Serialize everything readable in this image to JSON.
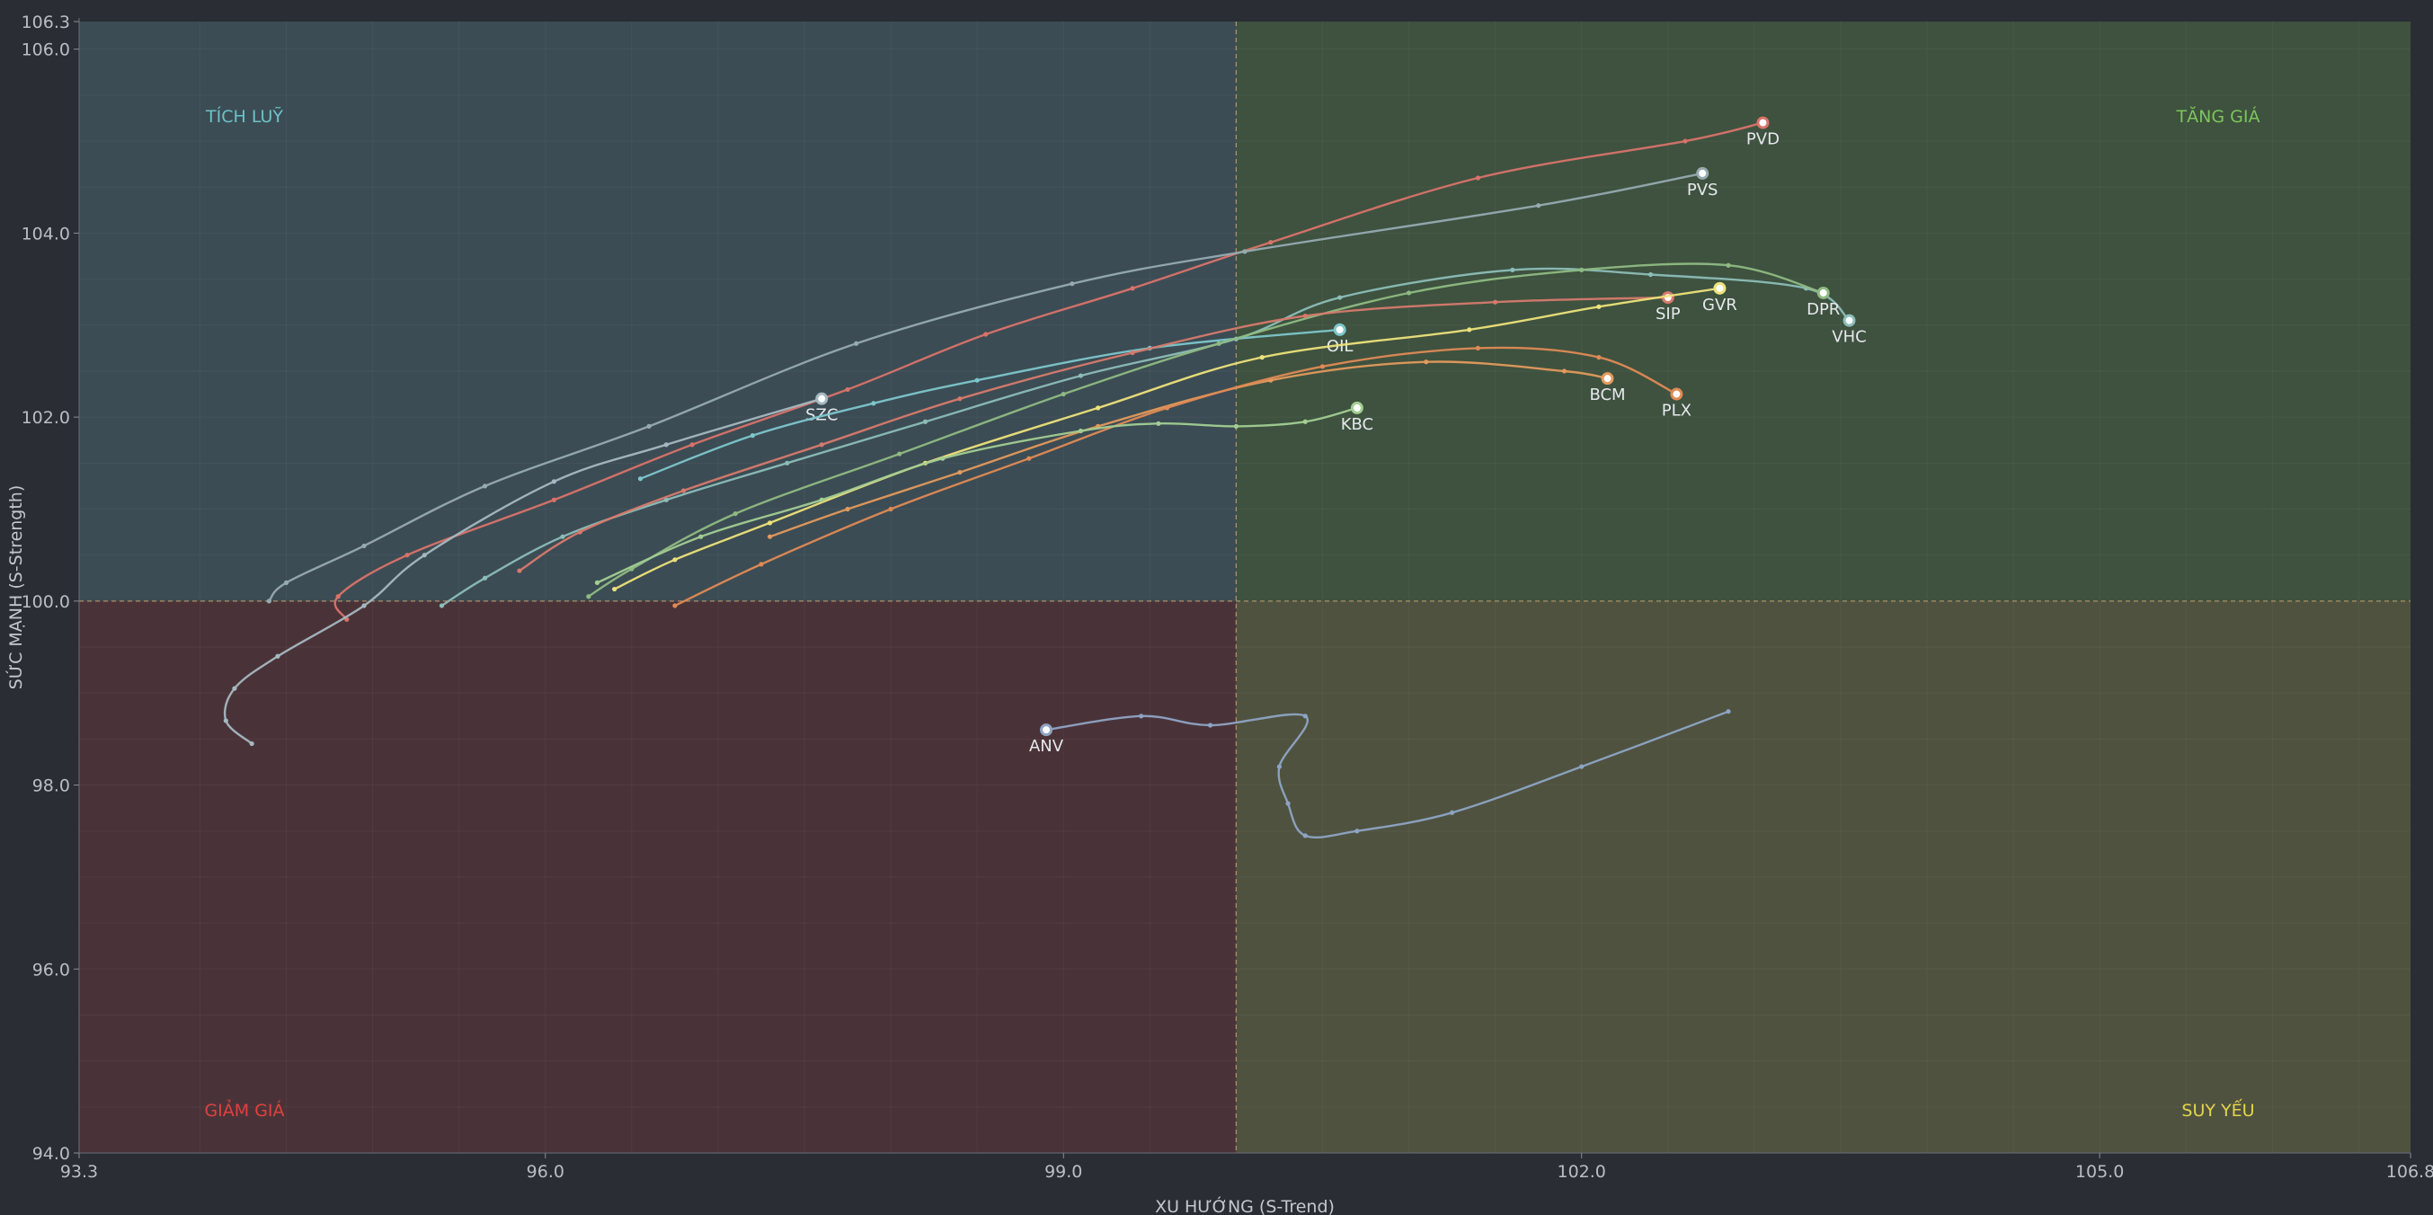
{
  "chart_data": {
    "type": "line",
    "xlabel": "XU HƯỚNG (S-Trend)",
    "ylabel": "SỨC MẠNH (S-Strength)",
    "xlim": [
      93.3,
      106.8
    ],
    "ylim": [
      94.0,
      106.3
    ],
    "x_ticks": [
      "93.3",
      "96.0",
      "99.0",
      "102.0",
      "105.0",
      "106.8"
    ],
    "x_tick_values": [
      93.3,
      96.0,
      99.0,
      102.0,
      105.0,
      106.8
    ],
    "y_ticks": [
      "94.0",
      "96.0",
      "98.0",
      "100.0",
      "102.0",
      "104.0",
      "106.0",
      "106.3"
    ],
    "y_tick_values": [
      94.0,
      96.0,
      98.0,
      100.0,
      102.0,
      104.0,
      106.0,
      106.3
    ],
    "center": [
      100.0,
      100.0
    ],
    "grid": true,
    "quadrants": [
      {
        "name": "TÍCH LUỸ",
        "position": "top-left",
        "color": "#6cc3c8"
      },
      {
        "name": "TĂNG GIÁ",
        "position": "top-right",
        "color": "#7fc45c"
      },
      {
        "name": "GIẢM GIÁ",
        "position": "bottom-left",
        "color": "#e0413f"
      },
      {
        "name": "SUY YẾU",
        "position": "bottom-right",
        "color": "#e4d64a"
      }
    ],
    "series": [
      {
        "name": "PVD",
        "color": "#d9736a",
        "points": [
          [
            94.85,
            99.8
          ],
          [
            94.8,
            100.05
          ],
          [
            95.2,
            100.5
          ],
          [
            96.05,
            101.1
          ],
          [
            96.85,
            101.7
          ],
          [
            97.75,
            102.3
          ],
          [
            98.55,
            102.9
          ],
          [
            99.4,
            103.4
          ],
          [
            100.2,
            103.9
          ],
          [
            101.4,
            104.6
          ],
          [
            102.6,
            105.0
          ],
          [
            103.05,
            105.2
          ]
        ]
      },
      {
        "name": "PVS",
        "color": "#96aab1",
        "points": [
          [
            94.4,
            100.0
          ],
          [
            94.5,
            100.2
          ],
          [
            94.95,
            100.6
          ],
          [
            95.65,
            101.25
          ],
          [
            96.6,
            101.9
          ],
          [
            97.8,
            102.8
          ],
          [
            99.05,
            103.45
          ],
          [
            100.05,
            103.8
          ],
          [
            101.75,
            104.3
          ],
          [
            102.7,
            104.65
          ]
        ]
      },
      {
        "name": "SZC",
        "color": "#a5b8c1",
        "points": [
          [
            94.3,
            98.45
          ],
          [
            94.15,
            98.7
          ],
          [
            94.2,
            99.05
          ],
          [
            94.45,
            99.4
          ],
          [
            94.95,
            99.95
          ],
          [
            95.3,
            100.5
          ],
          [
            96.05,
            101.3
          ],
          [
            96.7,
            101.7
          ],
          [
            97.6,
            102.2
          ]
        ]
      },
      {
        "name": "OIL",
        "color": "#7dc6cc",
        "points": [
          [
            96.55,
            101.33
          ],
          [
            97.2,
            101.8
          ],
          [
            97.9,
            102.15
          ],
          [
            98.5,
            102.4
          ],
          [
            99.5,
            102.75
          ],
          [
            100.6,
            102.95
          ]
        ]
      },
      {
        "name": "VHC",
        "color": "#8cbdb8",
        "points": [
          [
            95.4,
            99.95
          ],
          [
            95.65,
            100.25
          ],
          [
            96.1,
            100.7
          ],
          [
            96.7,
            101.1
          ],
          [
            97.4,
            101.5
          ],
          [
            98.2,
            101.95
          ],
          [
            99.1,
            102.45
          ],
          [
            100.0,
            102.85
          ],
          [
            100.6,
            103.3
          ],
          [
            101.6,
            103.6
          ],
          [
            102.4,
            103.55
          ],
          [
            103.3,
            103.4
          ],
          [
            103.55,
            103.05
          ]
        ]
      },
      {
        "name": "DPR",
        "color": "#8fba82",
        "points": [
          [
            96.25,
            100.05
          ],
          [
            96.5,
            100.35
          ],
          [
            97.1,
            100.95
          ],
          [
            98.05,
            101.6
          ],
          [
            99.0,
            102.25
          ],
          [
            99.9,
            102.8
          ],
          [
            101.0,
            103.35
          ],
          [
            102.0,
            103.6
          ],
          [
            102.85,
            103.65
          ],
          [
            103.4,
            103.35
          ]
        ]
      },
      {
        "name": "SIP",
        "color": "#d77a6d",
        "points": [
          [
            95.85,
            100.33
          ],
          [
            96.2,
            100.75
          ],
          [
            96.8,
            101.2
          ],
          [
            97.6,
            101.7
          ],
          [
            98.4,
            102.2
          ],
          [
            99.4,
            102.7
          ],
          [
            100.4,
            103.1
          ],
          [
            101.5,
            103.25
          ],
          [
            102.5,
            103.3
          ]
        ]
      },
      {
        "name": "GVR",
        "color": "#ede27a",
        "points": [
          [
            96.4,
            100.13
          ],
          [
            96.75,
            100.45
          ],
          [
            97.3,
            100.85
          ],
          [
            98.2,
            101.5
          ],
          [
            99.2,
            102.1
          ],
          [
            100.15,
            102.65
          ],
          [
            101.35,
            102.95
          ],
          [
            102.1,
            103.2
          ],
          [
            102.8,
            103.4
          ]
        ]
      },
      {
        "name": "BCM",
        "color": "#e39a5c",
        "points": [
          [
            97.3,
            100.7
          ],
          [
            97.75,
            101.0
          ],
          [
            98.4,
            101.4
          ],
          [
            99.2,
            101.9
          ],
          [
            100.2,
            102.4
          ],
          [
            101.1,
            102.6
          ],
          [
            101.9,
            102.5
          ],
          [
            102.15,
            102.42
          ]
        ]
      },
      {
        "name": "PLX",
        "color": "#df8a55",
        "points": [
          [
            96.75,
            99.95
          ],
          [
            97.25,
            100.4
          ],
          [
            98.0,
            101.0
          ],
          [
            98.8,
            101.55
          ],
          [
            99.6,
            102.1
          ],
          [
            100.5,
            102.55
          ],
          [
            101.4,
            102.75
          ],
          [
            102.1,
            102.65
          ],
          [
            102.55,
            102.25
          ]
        ]
      },
      {
        "name": "KBC",
        "color": "#a2ce93",
        "points": [
          [
            96.3,
            100.2
          ],
          [
            96.9,
            100.7
          ],
          [
            97.6,
            101.1
          ],
          [
            98.3,
            101.55
          ],
          [
            99.1,
            101.85
          ],
          [
            99.55,
            101.93
          ],
          [
            100.0,
            101.9
          ],
          [
            100.4,
            101.95
          ],
          [
            100.7,
            102.1
          ]
        ]
      },
      {
        "name": "ANV",
        "color": "#8ea4c4",
        "points": [
          [
            102.85,
            98.8
          ],
          [
            102.0,
            98.2
          ],
          [
            101.25,
            97.7
          ],
          [
            100.7,
            97.5
          ],
          [
            100.4,
            97.45
          ],
          [
            100.3,
            97.8
          ],
          [
            100.25,
            98.2
          ],
          [
            100.4,
            98.75
          ],
          [
            99.85,
            98.65
          ],
          [
            99.45,
            98.75
          ],
          [
            98.9,
            98.6
          ]
        ]
      }
    ]
  }
}
